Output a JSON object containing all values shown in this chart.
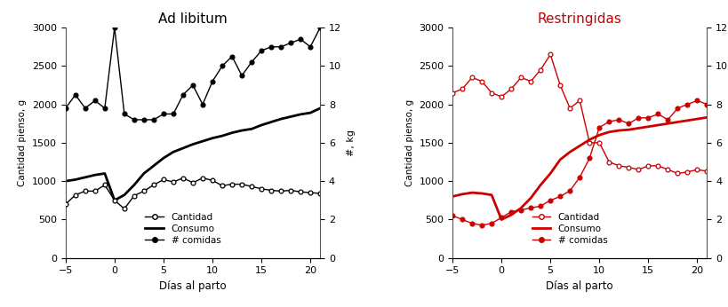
{
  "left_title": "Ad libitum",
  "right_title": "Restringidas",
  "right_title_color": "#CC0000",
  "left_title_color": "#000000",
  "xlabel": "Días al parto",
  "ylabel_left": "Cantidad pienso, g",
  "ylabel_right": "#, kg",
  "ylim_left": [
    0,
    3000
  ],
  "ylim_right": [
    0,
    12
  ],
  "xlim": [
    -5,
    21
  ],
  "xticks": [
    -5,
    0,
    5,
    10,
    15,
    20
  ],
  "yticks_left": [
    0,
    500,
    1000,
    1500,
    2000,
    2500,
    3000
  ],
  "yticks_right": [
    0,
    2,
    4,
    6,
    8,
    10,
    12
  ],
  "adlib_days": [
    -5,
    -4,
    -3,
    -2,
    -1,
    0,
    1,
    2,
    3,
    4,
    5,
    6,
    7,
    8,
    9,
    10,
    11,
    12,
    13,
    14,
    15,
    16,
    17,
    18,
    19,
    20,
    21
  ],
  "adlib_cantidad": [
    700,
    820,
    870,
    870,
    950,
    750,
    640,
    810,
    870,
    950,
    1020,
    990,
    1040,
    980,
    1040,
    1010,
    940,
    960,
    960,
    930,
    900,
    880,
    870,
    880,
    860,
    850,
    840
  ],
  "adlib_consumo": [
    1000,
    1020,
    1050,
    1080,
    1100,
    750,
    820,
    950,
    1100,
    1200,
    1300,
    1380,
    1430,
    1480,
    1520,
    1560,
    1590,
    1630,
    1660,
    1680,
    1730,
    1770,
    1810,
    1840,
    1870,
    1890,
    1950
  ],
  "adlib_comidas": [
    7.8,
    8.5,
    7.8,
    8.2,
    7.8,
    12.0,
    7.5,
    7.2,
    7.2,
    7.2,
    7.5,
    7.5,
    8.5,
    9.0,
    8.0,
    9.2,
    10.0,
    10.5,
    9.5,
    10.2,
    10.8,
    11.0,
    11.0,
    11.2,
    11.4,
    11.0,
    12.0
  ],
  "restr_days": [
    -5,
    -4,
    -3,
    -2,
    -1,
    0,
    1,
    2,
    3,
    4,
    5,
    6,
    7,
    8,
    9,
    10,
    11,
    12,
    13,
    14,
    15,
    16,
    17,
    18,
    19,
    20,
    21
  ],
  "restr_cantidad": [
    2150,
    2200,
    2350,
    2300,
    2150,
    2100,
    2200,
    2350,
    2300,
    2450,
    2650,
    2250,
    1950,
    2050,
    1500,
    1500,
    1250,
    1200,
    1180,
    1150,
    1200,
    1200,
    1150,
    1100,
    1120,
    1150,
    1130
  ],
  "restr_consumo": [
    800,
    830,
    850,
    840,
    820,
    500,
    560,
    650,
    780,
    950,
    1100,
    1280,
    1380,
    1460,
    1540,
    1600,
    1640,
    1660,
    1670,
    1690,
    1710,
    1730,
    1750,
    1770,
    1790,
    1810,
    1830
  ],
  "restr_comidas": [
    2.2,
    2.0,
    1.8,
    1.7,
    1.8,
    2.1,
    2.4,
    2.5,
    2.6,
    2.7,
    3.0,
    3.2,
    3.5,
    4.2,
    5.2,
    6.8,
    7.1,
    7.2,
    7.0,
    7.3,
    7.3,
    7.5,
    7.2,
    7.8,
    8.0,
    8.2,
    8.0
  ],
  "black": "#000000",
  "red": "#CC0000",
  "legend_labels": [
    "Cantidad",
    "Consumo",
    "# comidas"
  ]
}
